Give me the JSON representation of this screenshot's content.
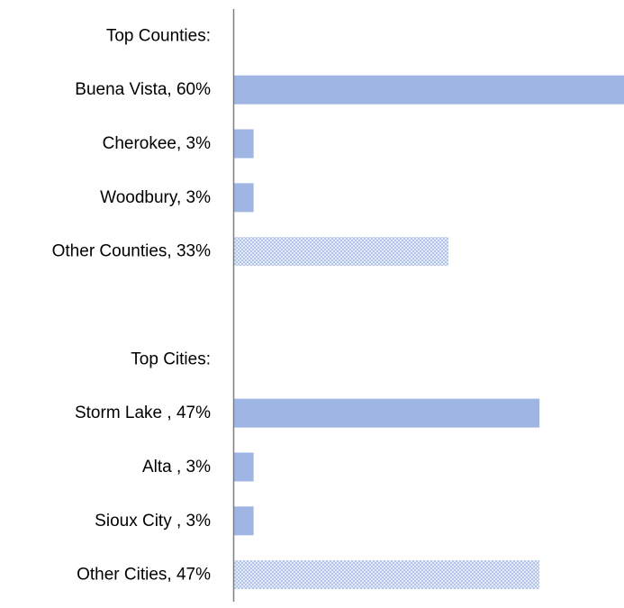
{
  "chart_data": {
    "type": "bar",
    "orientation": "horizontal",
    "categories": [
      "Top Counties:",
      "Buena Vista, 60%",
      "Cherokee, 3%",
      "Woodbury, 3%",
      "Other Counties, 33%",
      "",
      "Top Cities:",
      "Storm Lake , 47%",
      "Alta , 3%",
      "Sioux City , 3%",
      "Other Cities, 47%"
    ],
    "values": [
      null,
      60,
      3,
      3,
      33,
      null,
      null,
      47,
      3,
      3,
      47
    ],
    "styles": [
      "none",
      "solid",
      "solid",
      "solid",
      "pattern",
      "none",
      "none",
      "solid",
      "solid",
      "solid",
      "pattern"
    ],
    "xlim": [
      0,
      60
    ],
    "grid": false,
    "legend": "none",
    "colors": {
      "bar": "#9fb5e3",
      "pattern_bg": "#e4ebf8",
      "pattern_dot": "#b3c4e8",
      "axis": "#7f7f7f"
    }
  }
}
